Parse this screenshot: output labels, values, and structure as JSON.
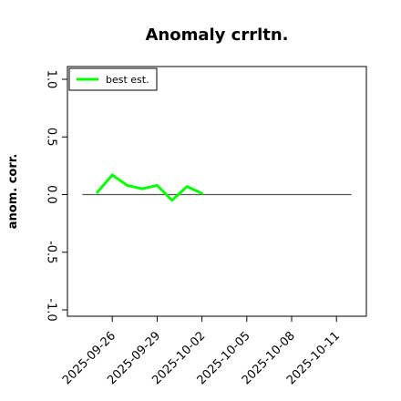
{
  "chart_data": {
    "type": "line",
    "title": "Anomaly crrltn.",
    "xlabel": "",
    "ylabel": "anom. corr.",
    "x_type": "date",
    "x": [
      "2025-09-25",
      "2025-09-26",
      "2025-09-27",
      "2025-09-28",
      "2025-09-29",
      "2025-09-30",
      "2025-10-01",
      "2025-10-02"
    ],
    "series": [
      {
        "name": "best est.",
        "color": "#00ff00",
        "values": [
          0.02,
          0.17,
          0.08,
          0.05,
          0.08,
          -0.05,
          0.07,
          0.01
        ]
      }
    ],
    "reference_line": {
      "y": 0.0,
      "x_range": [
        "2025-09-24",
        "2025-10-12"
      ],
      "color": "#555555"
    },
    "ylim": [
      -1.0,
      1.0
    ],
    "yticks": [
      -1.0,
      -0.5,
      0.0,
      0.5,
      1.0
    ],
    "ytick_labels": [
      "-1.0",
      "-0.5",
      "0.0",
      "0.5",
      "1.0"
    ],
    "xlim": [
      "2025-09-23",
      "2025-10-13"
    ],
    "xticks": [
      "2025-09-26",
      "2025-09-29",
      "2025-10-02",
      "2025-10-05",
      "2025-10-08",
      "2025-10-11"
    ],
    "xtick_labels": [
      "2025-09-26",
      "2025-09-29",
      "2025-10-02",
      "2025-10-05",
      "2025-10-08",
      "2025-10-11"
    ],
    "grid": false,
    "legend": {
      "placement": "top-left",
      "entries": [
        "best est."
      ]
    }
  }
}
